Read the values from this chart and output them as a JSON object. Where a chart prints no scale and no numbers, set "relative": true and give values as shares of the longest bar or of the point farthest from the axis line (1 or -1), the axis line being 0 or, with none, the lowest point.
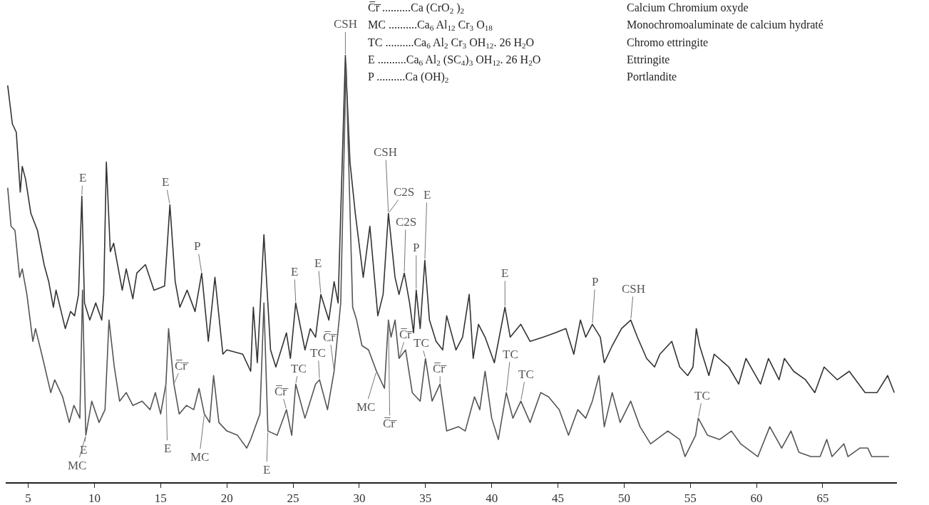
{
  "chart_data": {
    "type": "line",
    "relative": true,
    "xlim": [
      3.3,
      70.6
    ],
    "xticks": [
      5,
      10,
      15,
      20,
      25,
      30,
      35,
      40,
      45,
      50,
      55,
      60,
      65
    ],
    "marker": "none",
    "line_style": "solid",
    "series": [
      {
        "color": "#333333",
        "x": [
          3.45,
          3.8,
          4.1,
          4.4,
          4.55,
          4.8,
          5.2,
          5.7,
          6.2,
          6.55,
          6.9,
          7.1,
          7.8,
          8.2,
          8.5,
          8.8,
          9.05,
          9.25,
          9.65,
          10.1,
          10.55,
          10.7,
          10.9,
          11.2,
          11.45,
          12.1,
          12.4,
          12.9,
          13.2,
          13.85,
          14.5,
          15.3,
          15.7,
          16.1,
          16.45,
          17.0,
          17.6,
          18.1,
          18.6,
          19.1,
          19.7,
          20.0,
          21.2,
          21.8,
          22.0,
          22.3,
          22.8,
          23.3,
          23.7,
          24.5,
          24.8,
          25.2,
          25.9,
          26.3,
          26.7,
          27.1,
          27.7,
          28.1,
          28.4,
          28.95,
          29.3,
          29.7,
          30.3,
          30.8,
          31.4,
          31.8,
          32.2,
          32.7,
          33.0,
          33.4,
          33.8,
          34.1,
          34.3,
          34.6,
          34.95,
          35.3,
          35.8,
          36.3,
          36.6,
          37.3,
          37.8,
          38.3,
          38.6,
          39.0,
          39.5,
          40.2,
          41.0,
          41.4,
          42.2,
          42.9,
          43.9,
          44.8,
          45.6,
          46.2,
          46.7,
          47.1,
          47.6,
          48.2,
          48.5,
          49.1,
          49.8,
          50.5,
          51.0,
          51.7,
          52.3,
          52.7,
          53.6,
          54.2,
          54.8,
          55.2,
          55.45,
          55.7,
          56.4,
          56.8,
          57.9,
          58.65,
          59.2,
          60.3,
          60.9,
          61.7,
          62.1,
          62.8,
          63.7,
          64.4,
          65.1,
          66.1,
          67.0,
          68.2,
          69.1,
          69.9,
          70.4
        ],
        "values": [
          0.93,
          0.84,
          0.82,
          0.68,
          0.74,
          0.71,
          0.63,
          0.59,
          0.51,
          0.47,
          0.41,
          0.45,
          0.36,
          0.4,
          0.39,
          0.44,
          0.67,
          0.42,
          0.38,
          0.42,
          0.38,
          0.44,
          0.75,
          0.54,
          0.56,
          0.45,
          0.5,
          0.43,
          0.49,
          0.51,
          0.45,
          0.46,
          0.65,
          0.47,
          0.41,
          0.45,
          0.4,
          0.49,
          0.33,
          0.48,
          0.3,
          0.31,
          0.3,
          0.26,
          0.41,
          0.28,
          0.58,
          0.31,
          0.27,
          0.35,
          0.29,
          0.42,
          0.31,
          0.36,
          0.34,
          0.44,
          0.38,
          0.47,
          0.42,
          1.0,
          0.75,
          0.63,
          0.48,
          0.6,
          0.39,
          0.44,
          0.63,
          0.48,
          0.44,
          0.49,
          0.42,
          0.35,
          0.45,
          0.36,
          0.52,
          0.38,
          0.33,
          0.31,
          0.39,
          0.31,
          0.34,
          0.44,
          0.29,
          0.37,
          0.34,
          0.28,
          0.41,
          0.34,
          0.37,
          0.33,
          0.34,
          0.35,
          0.36,
          0.3,
          0.38,
          0.34,
          0.37,
          0.34,
          0.28,
          0.32,
          0.36,
          0.38,
          0.34,
          0.29,
          0.27,
          0.3,
          0.33,
          0.27,
          0.25,
          0.27,
          0.36,
          0.32,
          0.25,
          0.3,
          0.27,
          0.23,
          0.29,
          0.23,
          0.29,
          0.24,
          0.29,
          0.26,
          0.24,
          0.21,
          0.27,
          0.24,
          0.26,
          0.21,
          0.21,
          0.25,
          0.21
        ]
      },
      {
        "color": "#555555",
        "x": [
          3.45,
          3.7,
          4.0,
          4.35,
          4.55,
          4.9,
          5.35,
          5.55,
          6.1,
          6.7,
          7.0,
          7.6,
          8.1,
          8.45,
          8.9,
          9.1,
          9.35,
          9.8,
          10.35,
          10.8,
          11.1,
          11.5,
          11.9,
          12.4,
          12.9,
          13.6,
          14.2,
          14.6,
          15.0,
          15.4,
          15.6,
          16.0,
          16.4,
          16.95,
          17.5,
          17.9,
          18.3,
          18.7,
          19.0,
          19.4,
          20.0,
          20.8,
          21.5,
          21.8,
          22.5,
          22.8,
          23.1,
          23.8,
          24.5,
          24.9,
          25.2,
          25.9,
          26.7,
          27.0,
          27.6,
          28.1,
          28.6,
          29.0,
          29.2,
          29.5,
          29.8,
          30.2,
          30.7,
          31.3,
          31.9,
          32.2,
          32.4,
          32.7,
          33.0,
          33.5,
          34.0,
          34.6,
          35.0,
          35.5,
          36.1,
          36.6,
          37.5,
          38.0,
          38.7,
          39.1,
          39.5,
          40.0,
          40.5,
          41.1,
          41.6,
          42.2,
          42.9,
          43.7,
          44.3,
          45.1,
          45.8,
          46.5,
          47.1,
          47.6,
          48.1,
          48.5,
          49.1,
          49.7,
          50.5,
          51.2,
          52.0,
          53.3,
          54.2,
          54.6,
          55.4,
          55.6,
          56.3,
          57.2,
          58.1,
          58.8,
          60.1,
          61.0,
          61.9,
          62.6,
          63.2,
          64.1,
          64.8,
          65.3,
          65.7,
          66.6,
          66.9,
          67.8,
          68.4,
          68.7,
          69.6,
          70.0
        ],
        "values": [
          0.69,
          0.6,
          0.59,
          0.48,
          0.5,
          0.44,
          0.33,
          0.36,
          0.29,
          0.21,
          0.24,
          0.2,
          0.14,
          0.18,
          0.15,
          0.45,
          0.11,
          0.19,
          0.14,
          0.17,
          0.38,
          0.27,
          0.19,
          0.21,
          0.18,
          0.19,
          0.17,
          0.21,
          0.16,
          0.23,
          0.36,
          0.23,
          0.16,
          0.18,
          0.17,
          0.22,
          0.16,
          0.14,
          0.25,
          0.14,
          0.12,
          0.11,
          0.08,
          0.1,
          0.16,
          0.42,
          0.12,
          0.11,
          0.17,
          0.11,
          0.23,
          0.15,
          0.23,
          0.24,
          0.17,
          0.26,
          0.42,
          0.98,
          0.75,
          0.41,
          0.38,
          0.32,
          0.31,
          0.26,
          0.22,
          0.38,
          0.34,
          0.38,
          0.29,
          0.31,
          0.21,
          0.19,
          0.29,
          0.19,
          0.23,
          0.12,
          0.13,
          0.12,
          0.2,
          0.17,
          0.26,
          0.15,
          0.1,
          0.21,
          0.15,
          0.19,
          0.14,
          0.21,
          0.2,
          0.17,
          0.11,
          0.17,
          0.15,
          0.19,
          0.25,
          0.13,
          0.21,
          0.14,
          0.19,
          0.13,
          0.09,
          0.12,
          0.1,
          0.06,
          0.11,
          0.15,
          0.11,
          0.1,
          0.12,
          0.09,
          0.06,
          0.13,
          0.08,
          0.12,
          0.07,
          0.06,
          0.06,
          0.1,
          0.06,
          0.09,
          0.06,
          0.08,
          0.08,
          0.06,
          0.06,
          0.06
        ]
      }
    ],
    "annotations": [
      "C̅r̅ ..........Ca (CrO$_{2}$ )$_{2}$",
      "MC ..........Ca$_{6}$ Al$_{12}$ Cr$_{3}$ O$_{18}$",
      "TC ..........Ca$_{6}$ Al$_{2}$ Cr$_{3}$ OH$_{12}$. 26 H$_{2}$O",
      "E ..........Ca$_{6}$ Al$_{2}$ (SC$_{4}$)$_{3}$ OH$_{12}$. 26 H$_{2}$O",
      "P ..........Ca (OH)$_{2}$",
      "Calcium Chromium oxyde",
      "Monochromoaluminate de calcium hydraté",
      "Chromo ettringite",
      "Ettringite",
      "Portlandite",
      {
        "text": "E",
        "x": 9.05,
        "y": 0.67
      },
      {
        "text": "E",
        "x": 15.7,
        "y": 0.65
      },
      {
        "text": "P",
        "x": 18.1,
        "y": 0.49
      },
      {
        "text": "E",
        "x": 25.2,
        "y": 0.42
      },
      {
        "text": "E",
        "x": 27.1,
        "y": 0.44
      },
      {
        "text": "CSH",
        "x": 28.95,
        "y": 1.0
      },
      {
        "text": "CSH",
        "x": 32.2,
        "y": 0.63
      },
      {
        "text": "C2S",
        "x": 32.2,
        "y": 0.63
      },
      {
        "text": "C2S",
        "x": 33.4,
        "y": 0.49
      },
      {
        "text": "P",
        "x": 34.3,
        "y": 0.45
      },
      {
        "text": "E",
        "x": 34.95,
        "y": 0.52
      },
      {
        "text": "E",
        "x": 41.0,
        "y": 0.41
      },
      {
        "text": "P",
        "x": 47.6,
        "y": 0.37
      },
      {
        "text": "CSH",
        "x": 50.5,
        "y": 0.38
      },
      {
        "text": "C̅r̅",
        "x": 16.0,
        "y": 0.23
      },
      {
        "text": "E",
        "x": 9.35,
        "y": 0.11
      },
      {
        "text": "MC",
        "x": 9.35,
        "y": 0.11
      },
      {
        "text": "E",
        "x": 15.4,
        "y": 0.23
      },
      {
        "text": "MC",
        "x": 18.3,
        "y": 0.16
      },
      {
        "text": "E",
        "x": 23.1,
        "y": 0.12
      },
      {
        "text": "C̅r̅",
        "x": 24.5,
        "y": 0.17
      },
      {
        "text": "TC",
        "x": 25.2,
        "y": 0.23
      },
      {
        "text": "TC",
        "x": 27.0,
        "y": 0.24
      },
      {
        "text": "C̅r̅",
        "x": 28.1,
        "y": 0.26
      },
      {
        "text": "MC",
        "x": 31.3,
        "y": 0.26
      },
      {
        "text": "C̅r̅",
        "x": 32.2,
        "y": 0.38
      },
      {
        "text": "C̅r̅",
        "x": 33.0,
        "y": 0.29
      },
      {
        "text": "TC",
        "x": 35.0,
        "y": 0.29
      },
      {
        "text": "C̅r̅",
        "x": 36.1,
        "y": 0.23
      },
      {
        "text": "TC",
        "x": 41.1,
        "y": 0.21
      },
      {
        "text": "TC",
        "x": 42.2,
        "y": 0.19
      },
      {
        "text": "TC",
        "x": 55.6,
        "y": 0.15
      }
    ]
  }
}
